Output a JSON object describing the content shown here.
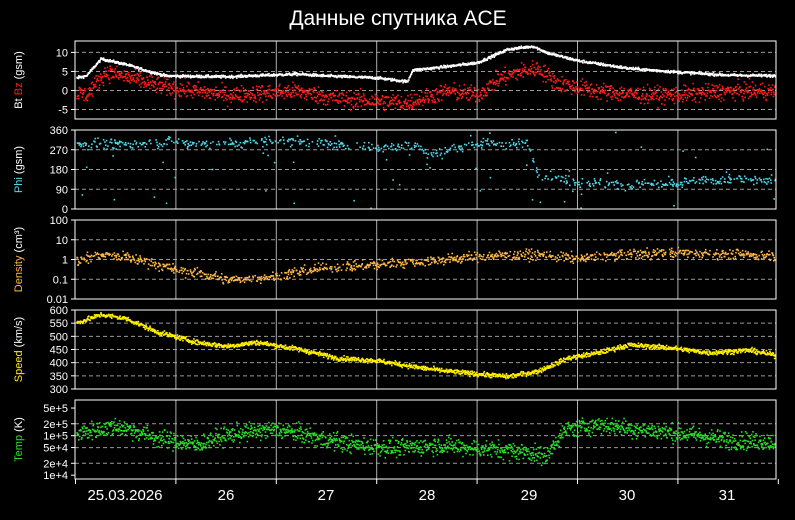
{
  "title": "Данные спутника ACE",
  "colors": {
    "background": "#000000",
    "axes": "#ffffff",
    "grid_h": "#9a9a9a",
    "bt": "#ffffff",
    "bz": "#ff1a1a",
    "phi": "#4fd8ea",
    "density": "#ffb84a",
    "speed": "#ffef00",
    "temp": "#27e027"
  },
  "x_axis": {
    "ticks": [
      "25.03.2026",
      "26",
      "27",
      "28",
      "29",
      "30",
      "31"
    ],
    "day_range": [
      0,
      7
    ]
  },
  "chart_data": [
    {
      "type": "scatter",
      "ylabel_parts": [
        {
          "text": "Bt",
          "color": "#ffffff"
        },
        {
          "text": " Bz",
          "color": "#ff1a1a"
        },
        {
          "text": " (gsm)",
          "color": "#ffffff"
        }
      ],
      "ylim": [
        -7.5,
        13
      ],
      "yticks": [
        -5,
        0,
        5,
        10
      ],
      "ytick_labels": [
        "-5",
        "0",
        "5",
        "10"
      ],
      "grid_y": [
        -5,
        0,
        5,
        10
      ],
      "series": [
        {
          "key": "Bt",
          "color": "#ffffff",
          "noise": 0.35,
          "sparse": 0.0,
          "curve": [
            [
              -0.1,
              3
            ],
            [
              0.1,
              4
            ],
            [
              0.25,
              8.5
            ],
            [
              0.5,
              7
            ],
            [
              0.75,
              5
            ],
            [
              0.9,
              4
            ],
            [
              1.5,
              3.8
            ],
            [
              2.2,
              4.5
            ],
            [
              2.5,
              4
            ],
            [
              3,
              3.5
            ],
            [
              3.3,
              2.5
            ],
            [
              3.35,
              5.5
            ],
            [
              3.7,
              6.5
            ],
            [
              4,
              7.5
            ],
            [
              4.3,
              11
            ],
            [
              4.55,
              11.8
            ],
            [
              4.7,
              10
            ],
            [
              5,
              8
            ],
            [
              5.5,
              6
            ],
            [
              6,
              5
            ],
            [
              6.5,
              4.2
            ],
            [
              7.25,
              4
            ]
          ]
        },
        {
          "key": "Bz",
          "color": "#ff1a1a",
          "noise": 2.2,
          "sparse": 0.0,
          "curve": [
            [
              -0.1,
              0
            ],
            [
              0.1,
              -1
            ],
            [
              0.3,
              5
            ],
            [
              0.6,
              3
            ],
            [
              0.9,
              1
            ],
            [
              1.5,
              -1
            ],
            [
              2.2,
              0
            ],
            [
              2.6,
              -2
            ],
            [
              3.3,
              -3
            ],
            [
              3.7,
              0
            ],
            [
              4,
              -1
            ],
            [
              4.2,
              3
            ],
            [
              4.4,
              5
            ],
            [
              4.6,
              6
            ],
            [
              4.8,
              2
            ],
            [
              5.2,
              0
            ],
            [
              5.6,
              -1
            ],
            [
              6,
              -1
            ],
            [
              6.5,
              0
            ],
            [
              7.25,
              0
            ]
          ]
        }
      ]
    },
    {
      "type": "scatter",
      "ylabel_parts": [
        {
          "text": "Phi",
          "color": "#4fd8ea"
        },
        {
          "text": " (gsm)",
          "color": "#ffffff"
        }
      ],
      "ylim": [
        0,
        360
      ],
      "yticks": [
        0,
        90,
        180,
        270,
        360
      ],
      "ytick_labels": [
        "0",
        "90",
        "180",
        "270",
        "360"
      ],
      "grid_y": [
        90,
        180,
        270
      ],
      "series": [
        {
          "key": "Phi",
          "color": "#4fd8ea",
          "noise": 22,
          "sparse": 0.55,
          "curve": [
            [
              -0.1,
              300
            ],
            [
              0.5,
              300
            ],
            [
              1,
              305
            ],
            [
              1.5,
              300
            ],
            [
              2,
              320
            ],
            [
              2.5,
              300
            ],
            [
              3,
              280
            ],
            [
              3.4,
              300
            ],
            [
              3.5,
              250
            ],
            [
              4,
              300
            ],
            [
              4.5,
              300
            ],
            [
              4.6,
              160
            ],
            [
              5,
              130
            ],
            [
              5.5,
              110
            ],
            [
              6,
              120
            ],
            [
              6.5,
              140
            ],
            [
              7.25,
              130
            ]
          ]
        }
      ]
    },
    {
      "type": "scatter",
      "ylabel_parts": [
        {
          "text": "Density",
          "color": "#ffb84a"
        },
        {
          "text": " (cm³)",
          "color": "#ffffff"
        }
      ],
      "log": true,
      "ylim": [
        0.01,
        100
      ],
      "yticks": [
        0.01,
        0.1,
        1,
        10,
        100
      ],
      "ytick_labels": [
        "0.01",
        "0.1",
        "1",
        "10",
        "100"
      ],
      "grid_y": [
        0.01,
        0.1,
        1,
        10
      ],
      "series": [
        {
          "key": "Density",
          "color": "#ffb84a",
          "noise": 0.25,
          "sparse": 0.35,
          "curve": [
            [
              -0.1,
              0.5
            ],
            [
              0.3,
              2
            ],
            [
              0.7,
              0.8
            ],
            [
              1,
              0.3
            ],
            [
              1.5,
              0.1
            ],
            [
              2,
              0.15
            ],
            [
              2.5,
              0.4
            ],
            [
              3,
              0.6
            ],
            [
              3.5,
              0.9
            ],
            [
              4,
              1.5
            ],
            [
              4.5,
              2
            ],
            [
              5,
              1.2
            ],
            [
              5.5,
              2
            ],
            [
              6,
              2.5
            ],
            [
              6.5,
              2
            ],
            [
              7.25,
              1.6
            ]
          ]
        }
      ]
    },
    {
      "type": "scatter",
      "ylabel_parts": [
        {
          "text": "Speed",
          "color": "#ffef00"
        },
        {
          "text": " (km/s)",
          "color": "#ffffff"
        }
      ],
      "ylim": [
        300,
        600
      ],
      "yticks": [
        300,
        350,
        400,
        450,
        500,
        550,
        600
      ],
      "ytick_labels": [
        "300",
        "350",
        "400",
        "450",
        "500",
        "550",
        "600"
      ],
      "grid_y": [
        350,
        400,
        450,
        500,
        550
      ],
      "series": [
        {
          "key": "Speed",
          "color": "#ffef00",
          "noise": 9,
          "sparse": 0.0,
          "curve": [
            [
              -0.1,
              540
            ],
            [
              0.25,
              585
            ],
            [
              0.5,
              570
            ],
            [
              0.8,
              520
            ],
            [
              1.2,
              480
            ],
            [
              1.5,
              465
            ],
            [
              1.8,
              480
            ],
            [
              2.2,
              455
            ],
            [
              2.6,
              420
            ],
            [
              3,
              410
            ],
            [
              3.4,
              385
            ],
            [
              3.7,
              370
            ],
            [
              4,
              360
            ],
            [
              4.3,
              350
            ],
            [
              4.6,
              370
            ],
            [
              4.9,
              420
            ],
            [
              5.2,
              440
            ],
            [
              5.5,
              470
            ],
            [
              5.9,
              460
            ],
            [
              6.3,
              440
            ],
            [
              6.7,
              450
            ],
            [
              7.25,
              410
            ]
          ]
        }
      ]
    },
    {
      "type": "scatter",
      "ylabel_parts": [
        {
          "text": "Temp",
          "color": "#27e027"
        },
        {
          "text": " (K)",
          "color": "#ffffff"
        }
      ],
      "log": true,
      "ylim": [
        8000,
        800000
      ],
      "yticks": [
        10000,
        20000,
        50000,
        100000,
        200000,
        500000
      ],
      "ytick_labels": [
        "1e+4",
        "2e+4",
        "5e+4",
        "1e+5",
        "2e+5",
        "5e+5"
      ],
      "grid_y": [
        20000,
        50000,
        100000,
        200000
      ],
      "series": [
        {
          "key": "Temp",
          "color": "#27e027",
          "noise": 0.22,
          "sparse": 0.0,
          "curve": [
            [
              -0.1,
              100000
            ],
            [
              0.4,
              180000
            ],
            [
              0.8,
              90000
            ],
            [
              1.2,
              60000
            ],
            [
              1.6,
              120000
            ],
            [
              2,
              150000
            ],
            [
              2.4,
              90000
            ],
            [
              2.8,
              60000
            ],
            [
              3.2,
              50000
            ],
            [
              3.6,
              60000
            ],
            [
              4,
              50000
            ],
            [
              4.5,
              40000
            ],
            [
              4.7,
              30000
            ],
            [
              4.9,
              150000
            ],
            [
              5.2,
              200000
            ],
            [
              5.6,
              150000
            ],
            [
              6,
              120000
            ],
            [
              6.5,
              80000
            ],
            [
              7.25,
              70000
            ]
          ]
        }
      ]
    }
  ]
}
